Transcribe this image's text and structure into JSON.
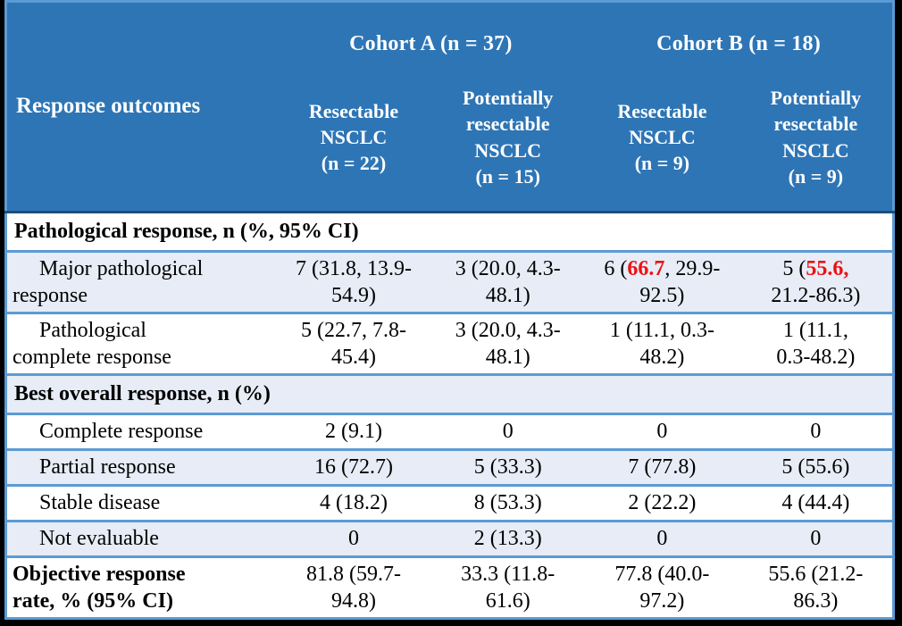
{
  "table": {
    "row_header": "Response outcomes",
    "cohort_a": "Cohort A (n = 37)",
    "cohort_b": "Cohort B (n = 18)",
    "columns": [
      "Resectable\nNSCLC\n(n = 22)",
      "Potentially\nresectable\nNSCLC\n(n = 15)",
      "Resectable\nNSCLC\n(n = 9)",
      "Potentially\nresectable\nNSCLC\n(n = 9)"
    ],
    "rows": [
      {
        "type": "section",
        "label": "Pathological response, n (%, 95% CI)"
      },
      {
        "type": "data",
        "label": "Major pathological\nresponse",
        "values": [
          "7 (31.8, 13.9-\n54.9)",
          "3 (20.0, 4.3-\n48.1)",
          [
            {
              "t": "6 ("
            },
            {
              "t": "66.7",
              "red": true
            },
            {
              "t": ", 29.9-\n92.5)"
            }
          ],
          [
            {
              "t": "5 ("
            },
            {
              "t": "55.6,",
              "red": true
            },
            {
              "t": "\n21.2-86.3)"
            }
          ]
        ]
      },
      {
        "type": "data",
        "label": "Pathological\ncomplete response",
        "values": [
          "5 (22.7, 7.8-\n45.4)",
          "3 (20.0, 4.3-\n48.1)",
          "1 (11.1, 0.3-\n48.2)",
          "1 (11.1,\n0.3-48.2)"
        ]
      },
      {
        "type": "section",
        "label": "Best overall response, n (%)"
      },
      {
        "type": "data",
        "label": "Complete response",
        "values": [
          "2 (9.1)",
          "0",
          "0",
          "0"
        ]
      },
      {
        "type": "data",
        "label": "Partial response",
        "values": [
          "16 (72.7)",
          "5 (33.3)",
          "7 (77.8)",
          "5 (55.6)"
        ]
      },
      {
        "type": "data",
        "label": "Stable disease",
        "values": [
          "4 (18.2)",
          "8 (53.3)",
          "2 (22.2)",
          "4 (44.4)"
        ]
      },
      {
        "type": "data",
        "label": "Not evaluable",
        "values": [
          "0",
          "2 (13.3)",
          "0",
          "0"
        ]
      },
      {
        "type": "footer",
        "label": "Objective response\nrate, % (95% CI)",
        "values": [
          "81.8 (59.7-\n94.8)",
          "33.3 (11.8-\n61.6)",
          "77.8 (40.0-\n97.2)",
          "55.6 (21.2-\n86.3)"
        ]
      }
    ]
  },
  "colors": {
    "header_bg": "#2e75b5",
    "band_bg": "#e7ecf6",
    "border": "#5b9bd5",
    "header_border": "#1f4e79",
    "highlight": "#ee1111",
    "frame": "#000000",
    "header_text": "#ffffff"
  }
}
